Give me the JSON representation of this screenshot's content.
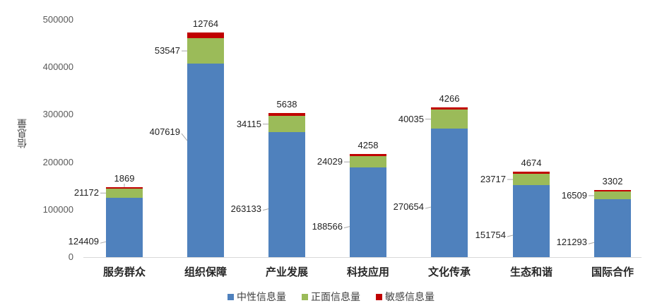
{
  "chart_data": {
    "type": "bar",
    "stacked": true,
    "title": "",
    "xlabel": "",
    "ylabel": "信息量",
    "ylim": [
      0,
      500000
    ],
    "yticks": [
      0,
      100000,
      200000,
      300000,
      400000,
      500000
    ],
    "grid": false,
    "legend_position": "bottom",
    "categories": [
      "服务群众",
      "组织保障",
      "产业发展",
      "科技应用",
      "文化传承",
      "生态和谐",
      "国际合作"
    ],
    "series": [
      {
        "name": "中性信息量",
        "color": "#4f81bd",
        "values": [
          124409,
          407619,
          263133,
          188566,
          270654,
          151754,
          121293
        ]
      },
      {
        "name": "正面信息量",
        "color": "#9bbb59",
        "values": [
          21172,
          53547,
          34115,
          24029,
          40035,
          23717,
          16509
        ]
      },
      {
        "name": "敏感信息量",
        "color": "#c00000",
        "values": [
          1869,
          12764,
          5638,
          4258,
          4266,
          4674,
          3302
        ]
      }
    ]
  }
}
